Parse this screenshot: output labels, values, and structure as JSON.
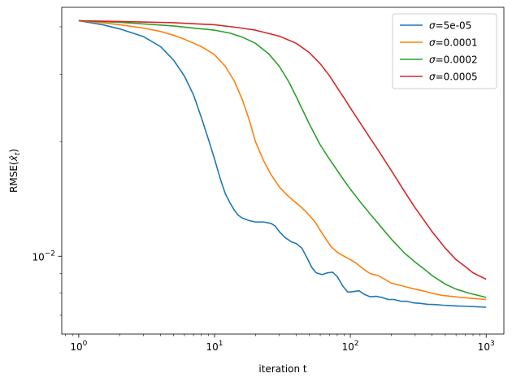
{
  "chart_data": {
    "type": "line",
    "title": "",
    "xlabel": "iteration t",
    "ylabel": "RMSE(x̂_t)",
    "ylabel_main": "RMSE(",
    "ylabel_var": "x̂",
    "ylabel_sub": "t",
    "ylabel_close": ")",
    "x_scale": "log",
    "y_scale": "log",
    "xlim": [
      0.75,
      1350
    ],
    "ylim": [
      0.00625,
      0.045
    ],
    "x_ticks": [
      {
        "value": 1,
        "base": "10",
        "exp": "0"
      },
      {
        "value": 10,
        "base": "10",
        "exp": "1"
      },
      {
        "value": 100,
        "base": "10",
        "exp": "2"
      },
      {
        "value": 1000,
        "base": "10",
        "exp": "3"
      }
    ],
    "y_ticks": [
      {
        "value": 0.01,
        "base": "10",
        "exp": "−2"
      }
    ],
    "grid": false,
    "legend_position": "top-right",
    "series": [
      {
        "name": "σ=5e-05",
        "label_sym": "σ",
        "label_val": "=5e-05",
        "color": "#1f77b4",
        "points": [
          [
            1,
            0.0415
          ],
          [
            1.5,
            0.0405
          ],
          [
            2,
            0.0395
          ],
          [
            3,
            0.0377
          ],
          [
            4,
            0.0355
          ],
          [
            5,
            0.0327
          ],
          [
            6,
            0.0297
          ],
          [
            7,
            0.0265
          ],
          [
            8,
            0.0231
          ],
          [
            9,
            0.0203
          ],
          [
            10,
            0.018
          ],
          [
            11,
            0.016
          ],
          [
            12,
            0.0146
          ],
          [
            13,
            0.0138
          ],
          [
            14,
            0.0132
          ],
          [
            15,
            0.0128
          ],
          [
            16,
            0.0126
          ],
          [
            18,
            0.0124
          ],
          [
            20,
            0.0123
          ],
          [
            23,
            0.0123
          ],
          [
            26,
            0.0122
          ],
          [
            28,
            0.012
          ],
          [
            30,
            0.0116
          ],
          [
            33,
            0.0112
          ],
          [
            37,
            0.0109
          ],
          [
            40,
            0.0108
          ],
          [
            44,
            0.0105
          ],
          [
            48,
            0.0099
          ],
          [
            52,
            0.00935
          ],
          [
            56,
            0.00905
          ],
          [
            62,
            0.00895
          ],
          [
            68,
            0.00905
          ],
          [
            74,
            0.00908
          ],
          [
            80,
            0.00885
          ],
          [
            88,
            0.00835
          ],
          [
            96,
            0.00805
          ],
          [
            106,
            0.00808
          ],
          [
            116,
            0.00812
          ],
          [
            126,
            0.00795
          ],
          [
            140,
            0.00783
          ],
          [
            155,
            0.00785
          ],
          [
            170,
            0.0078
          ],
          [
            190,
            0.0077
          ],
          [
            210,
            0.0077
          ],
          [
            235,
            0.00762
          ],
          [
            260,
            0.00762
          ],
          [
            290,
            0.00755
          ],
          [
            330,
            0.00752
          ],
          [
            370,
            0.00748
          ],
          [
            420,
            0.00747
          ],
          [
            480,
            0.00744
          ],
          [
            550,
            0.00742
          ],
          [
            630,
            0.0074
          ],
          [
            720,
            0.00739
          ],
          [
            850,
            0.00737
          ],
          [
            1000,
            0.00735
          ]
        ]
      },
      {
        "name": "σ=0.0001",
        "label_sym": "σ",
        "label_val": "=0.0001",
        "color": "#ff7f0e",
        "points": [
          [
            1,
            0.0415
          ],
          [
            1.5,
            0.041
          ],
          [
            2,
            0.0405
          ],
          [
            3,
            0.0397
          ],
          [
            4,
            0.0389
          ],
          [
            5,
            0.038
          ],
          [
            6,
            0.0371
          ],
          [
            8,
            0.0355
          ],
          [
            10,
            0.0338
          ],
          [
            12,
            0.0315
          ],
          [
            14,
            0.0288
          ],
          [
            16,
            0.0258
          ],
          [
            18,
            0.0228
          ],
          [
            20,
            0.02
          ],
          [
            23,
            0.0178
          ],
          [
            26,
            0.0164
          ],
          [
            30,
            0.0152
          ],
          [
            34,
            0.0145
          ],
          [
            38,
            0.014
          ],
          [
            42,
            0.0136
          ],
          [
            46,
            0.0132
          ],
          [
            50,
            0.0128
          ],
          [
            55,
            0.0123
          ],
          [
            60,
            0.0117
          ],
          [
            66,
            0.0111
          ],
          [
            72,
            0.0106
          ],
          [
            80,
            0.01025
          ],
          [
            90,
            0.01
          ],
          [
            100,
            0.0098
          ],
          [
            110,
            0.0096
          ],
          [
            125,
            0.00925
          ],
          [
            140,
            0.009
          ],
          [
            160,
            0.0089
          ],
          [
            180,
            0.0087
          ],
          [
            200,
            0.0085
          ],
          [
            230,
            0.0084
          ],
          [
            260,
            0.0083
          ],
          [
            300,
            0.0082
          ],
          [
            350,
            0.0081
          ],
          [
            400,
            0.008
          ],
          [
            470,
            0.0079
          ],
          [
            550,
            0.00785
          ],
          [
            650,
            0.0078
          ],
          [
            800,
            0.00775
          ],
          [
            1000,
            0.0077
          ]
        ]
      },
      {
        "name": "σ=0.0002",
        "label_sym": "σ",
        "label_val": "=0.0002",
        "color": "#2ca02c",
        "points": [
          [
            1,
            0.0415
          ],
          [
            2,
            0.0411
          ],
          [
            3,
            0.0407
          ],
          [
            5,
            0.0402
          ],
          [
            7,
            0.0397
          ],
          [
            10,
            0.0392
          ],
          [
            13,
            0.0385
          ],
          [
            16,
            0.0376
          ],
          [
            20,
            0.0362
          ],
          [
            25,
            0.034
          ],
          [
            30,
            0.0315
          ],
          [
            35,
            0.0288
          ],
          [
            40,
            0.0262
          ],
          [
            45,
            0.024
          ],
          [
            50,
            0.0222
          ],
          [
            60,
            0.0196
          ],
          [
            70,
            0.018
          ],
          [
            80,
            0.0168
          ],
          [
            90,
            0.0158
          ],
          [
            100,
            0.015
          ],
          [
            120,
            0.0138
          ],
          [
            140,
            0.0129
          ],
          [
            160,
            0.0122
          ],
          [
            180,
            0.0116
          ],
          [
            200,
            0.0111
          ],
          [
            250,
            0.0102
          ],
          [
            300,
            0.00965
          ],
          [
            350,
            0.00925
          ],
          [
            400,
            0.0089
          ],
          [
            500,
            0.00845
          ],
          [
            600,
            0.0082
          ],
          [
            750,
            0.008
          ],
          [
            1000,
            0.0078
          ]
        ]
      },
      {
        "name": "σ=0.0005",
        "label_sym": "σ",
        "label_val": "=0.0005",
        "color": "#d62728",
        "points": [
          [
            1,
            0.0415
          ],
          [
            2,
            0.0413
          ],
          [
            5,
            0.041
          ],
          [
            10,
            0.0405
          ],
          [
            15,
            0.0398
          ],
          [
            20,
            0.0392
          ],
          [
            30,
            0.0378
          ],
          [
            40,
            0.0362
          ],
          [
            50,
            0.0342
          ],
          [
            60,
            0.032
          ],
          [
            70,
            0.0298
          ],
          [
            80,
            0.0277
          ],
          [
            90,
            0.026
          ],
          [
            100,
            0.0245
          ],
          [
            120,
            0.0222
          ],
          [
            140,
            0.0204
          ],
          [
            160,
            0.019
          ],
          [
            200,
            0.0168
          ],
          [
            250,
            0.0148
          ],
          [
            300,
            0.0134
          ],
          [
            400,
            0.0116
          ],
          [
            500,
            0.0105
          ],
          [
            600,
            0.0098
          ],
          [
            700,
            0.0094
          ],
          [
            800,
            0.00905
          ],
          [
            1000,
            0.0087
          ]
        ]
      }
    ]
  }
}
